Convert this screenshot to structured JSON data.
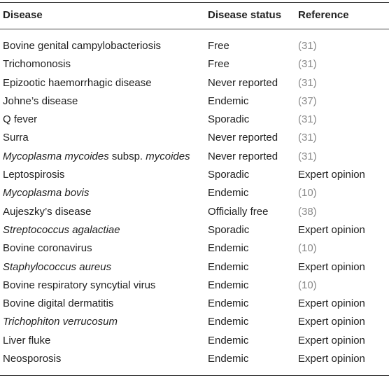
{
  "table": {
    "headers": [
      "Disease",
      "Disease status",
      "Reference"
    ],
    "rows": [
      {
        "disease": [
          "Bovine genital campylobacteriosis"
        ],
        "status": "Free",
        "ref": "(31)",
        "ref_is_citation": true
      },
      {
        "disease": [
          "Trichomonosis"
        ],
        "status": "Free",
        "ref": "(31)",
        "ref_is_citation": true
      },
      {
        "disease": [
          "Epizootic haemorrhagic disease"
        ],
        "status": "Never reported",
        "ref": "(31)",
        "ref_is_citation": true
      },
      {
        "disease": [
          "Johne’s disease"
        ],
        "status": "Endemic",
        "ref": "(37)",
        "ref_is_citation": true
      },
      {
        "disease": [
          "Q fever"
        ],
        "status": "Sporadic",
        "ref": "(31)",
        "ref_is_citation": true
      },
      {
        "disease": [
          "Surra"
        ],
        "status": "Never reported",
        "ref": "(31)",
        "ref_is_citation": true
      },
      {
        "disease": [
          "Mycoplasma mycoides",
          " subsp. ",
          "mycoides"
        ],
        "disease_italic": [
          true,
          false,
          true
        ],
        "status": "Never reported",
        "ref": "(31)",
        "ref_is_citation": true
      },
      {
        "disease": [
          "Leptospirosis"
        ],
        "status": "Sporadic",
        "ref": "Expert opinion",
        "ref_is_citation": false
      },
      {
        "disease": [
          "Mycoplasma bovis"
        ],
        "disease_italic": [
          true
        ],
        "status": "Endemic",
        "ref": "(10)",
        "ref_is_citation": true
      },
      {
        "disease": [
          "Aujeszky’s disease"
        ],
        "status": "Officially free",
        "ref": "(38)",
        "ref_is_citation": true
      },
      {
        "disease": [
          "Streptococcus agalactiae"
        ],
        "disease_italic": [
          true
        ],
        "status": "Sporadic",
        "ref": "Expert opinion",
        "ref_is_citation": false
      },
      {
        "disease": [
          "Bovine coronavirus"
        ],
        "status": "Endemic",
        "ref": "(10)",
        "ref_is_citation": true
      },
      {
        "disease": [
          "Staphylococcus aureus"
        ],
        "disease_italic": [
          true
        ],
        "status": "Endemic",
        "ref": "Expert opinion",
        "ref_is_citation": false
      },
      {
        "disease": [
          "Bovine respiratory syncytial virus"
        ],
        "status": "Endemic",
        "ref": "(10)",
        "ref_is_citation": true
      },
      {
        "disease": [
          "Bovine digital dermatitis"
        ],
        "status": "Endemic",
        "ref": "Expert opinion",
        "ref_is_citation": false
      },
      {
        "disease": [
          "Trichophiton verrucosum"
        ],
        "disease_italic": [
          true
        ],
        "status": "Endemic",
        "ref": "Expert opinion",
        "ref_is_citation": false
      },
      {
        "disease": [
          "Liver fluke"
        ],
        "status": "Endemic",
        "ref": "Expert opinion",
        "ref_is_citation": false
      },
      {
        "disease": [
          "Neosporosis"
        ],
        "status": "Endemic",
        "ref": "Expert opinion",
        "ref_is_citation": false
      }
    ]
  },
  "colors": {
    "text": "#222222",
    "citation_link": "#8a8a8a",
    "rules": "#333333"
  }
}
